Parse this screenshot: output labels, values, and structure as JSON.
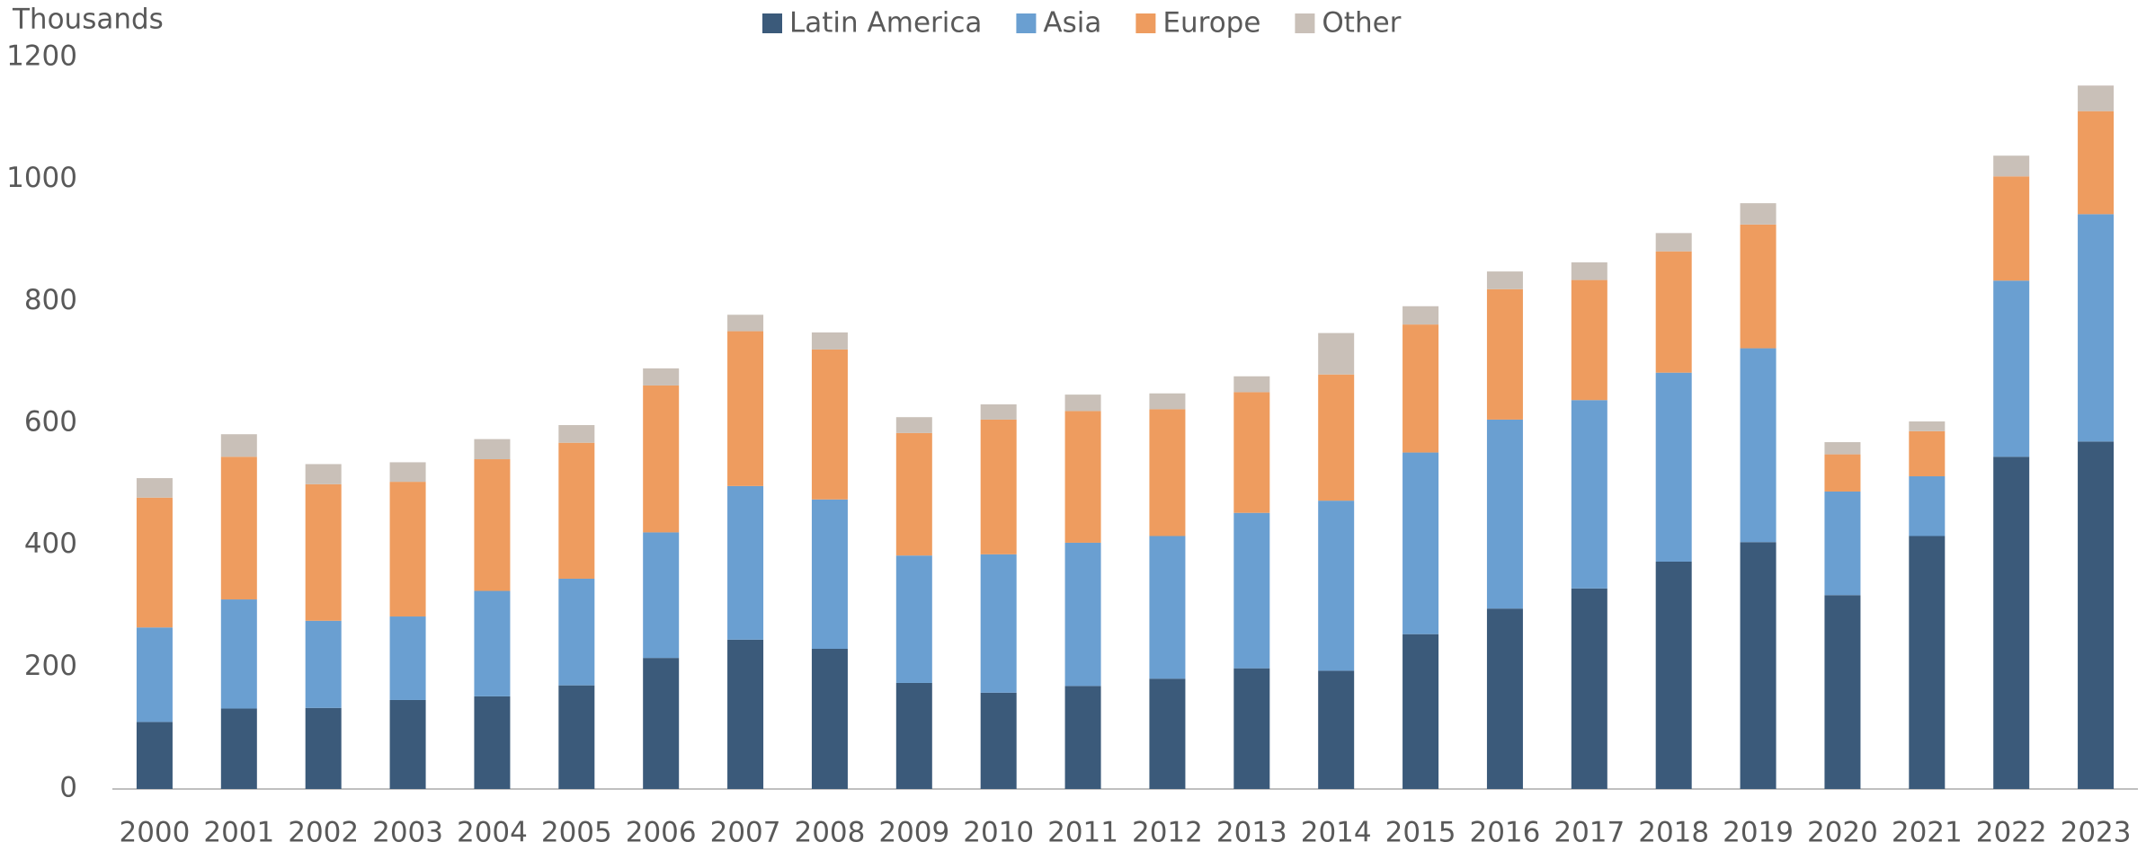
{
  "chart_data": {
    "type": "stacked_bar",
    "y_label": "Thousands",
    "categories": [
      "2000",
      "2001",
      "2002",
      "2003",
      "2004",
      "2005",
      "2006",
      "2007",
      "2008",
      "2009",
      "2010",
      "2011",
      "2012",
      "2013",
      "2014",
      "2015",
      "2016",
      "2017",
      "2018",
      "2019",
      "2020",
      "2021",
      "2022",
      "2023"
    ],
    "series": [
      {
        "name": "Latin America",
        "color": "#3b5a7a",
        "values": [
          110,
          132,
          133,
          146,
          152,
          170,
          215,
          245,
          230,
          174,
          158,
          169,
          181,
          198,
          194,
          254,
          296,
          329,
          373,
          405,
          318,
          415,
          545,
          570
        ]
      },
      {
        "name": "Asia",
        "color": "#6a9fd1",
        "values": [
          155,
          179,
          143,
          137,
          173,
          175,
          206,
          252,
          245,
          209,
          227,
          235,
          234,
          255,
          279,
          298,
          310,
          309,
          310,
          318,
          170,
          98,
          289,
          373
        ]
      },
      {
        "name": "Europe",
        "color": "#ee9c5f",
        "values": [
          213,
          234,
          224,
          221,
          216,
          223,
          241,
          254,
          246,
          201,
          221,
          216,
          208,
          198,
          207,
          210,
          214,
          197,
          199,
          203,
          61,
          74,
          171,
          169
        ]
      },
      {
        "name": "Other",
        "color": "#c9c0b8",
        "values": [
          32,
          37,
          33,
          32,
          33,
          29,
          28,
          27,
          28,
          26,
          25,
          27,
          26,
          26,
          68,
          30,
          29,
          29,
          30,
          35,
          20,
          16,
          34,
          42
        ]
      }
    ],
    "ylim": [
      0,
      1200
    ],
    "yticks": [
      0,
      200,
      400,
      600,
      800,
      1000,
      1200
    ],
    "legend": "top",
    "grid": false
  }
}
